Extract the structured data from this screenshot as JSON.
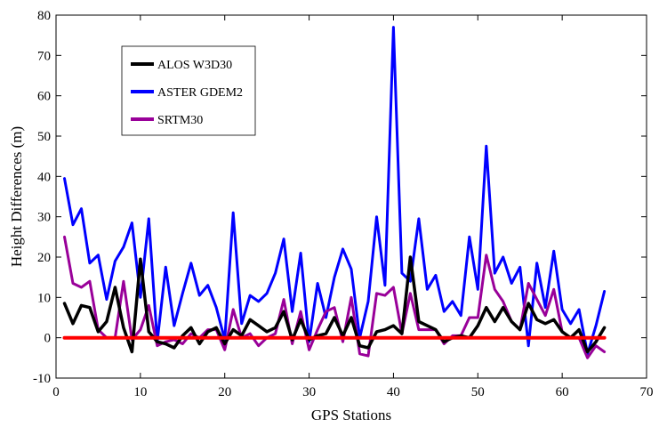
{
  "chart_data": {
    "type": "line",
    "title": "",
    "xlabel": "GPS Stations",
    "ylabel": "Height Differences (m)",
    "xlim": [
      0,
      70
    ],
    "ylim": [
      -10,
      80
    ],
    "xticks": [
      0,
      10,
      20,
      30,
      40,
      50,
      60,
      70
    ],
    "yticks": [
      -10,
      0,
      10,
      20,
      30,
      40,
      50,
      60,
      70,
      80
    ],
    "grid": false,
    "legend_position": "top-left",
    "x": [
      1,
      2,
      3,
      4,
      5,
      6,
      7,
      8,
      9,
      10,
      11,
      12,
      13,
      14,
      15,
      16,
      17,
      18,
      19,
      20,
      21,
      22,
      23,
      24,
      25,
      26,
      27,
      28,
      29,
      30,
      31,
      32,
      33,
      34,
      35,
      36,
      37,
      38,
      39,
      40,
      41,
      42,
      43,
      44,
      45,
      46,
      47,
      48,
      49,
      50,
      51,
      52,
      53,
      54,
      55,
      56,
      57,
      58,
      59,
      60,
      61,
      62,
      63,
      64,
      65
    ],
    "series": [
      {
        "name": "ALOS W3D30",
        "color": "#000000",
        "values": [
          8.5,
          3.5,
          8,
          7.5,
          1.5,
          4,
          12.5,
          2.5,
          -3.5,
          19.5,
          1.5,
          -1,
          -1.5,
          -2.5,
          0.5,
          2.5,
          -1.5,
          1.5,
          2.5,
          -1.5,
          2,
          0.5,
          4.5,
          3,
          1.5,
          2.5,
          6.5,
          -0.5,
          4.5,
          -0.5,
          0.5,
          1,
          5,
          0.5,
          5,
          -2,
          -2.5,
          1.5,
          2,
          3,
          1,
          20,
          4,
          3,
          2,
          -1,
          0,
          0.5,
          0,
          3,
          7.5,
          4,
          7.5,
          4,
          2,
          8.5,
          4.5,
          3.5,
          4.5,
          1.5,
          0,
          2,
          -3.5,
          -1,
          2.5
        ]
      },
      {
        "name": "ASTER GDEM2",
        "color": "#0000FF",
        "values": [
          39.5,
          28,
          32,
          18.5,
          20.5,
          9.5,
          19,
          22.5,
          28.5,
          10,
          29.5,
          -1,
          17.5,
          3,
          11,
          18.5,
          10.5,
          13,
          7.5,
          -0.5,
          31,
          3.5,
          10.5,
          9,
          11,
          16,
          24.5,
          6.5,
          21,
          -1,
          13.5,
          5,
          15,
          22,
          17,
          0,
          9,
          30,
          13,
          77,
          16,
          14,
          29.5,
          12,
          15.5,
          6.5,
          9,
          5.5,
          25,
          12,
          47.5,
          16,
          20,
          13.5,
          17.5,
          -2,
          18.5,
          7.5,
          21.5,
          7,
          3.5,
          7,
          -4,
          3,
          11.5
        ]
      },
      {
        "name": "SRTM30",
        "color": "#990099",
        "values": [
          25,
          13.5,
          12.5,
          14,
          2,
          0,
          0,
          14,
          -0.5,
          2,
          8,
          -2,
          -1,
          -0.5,
          -1.5,
          1,
          0,
          2,
          2,
          -3,
          7,
          0,
          1,
          -2,
          0,
          1,
          9.5,
          -1.5,
          6.5,
          -3,
          2,
          6.5,
          7.5,
          -1,
          10,
          -4,
          -4.5,
          11,
          10.5,
          12.5,
          1,
          11,
          2,
          2,
          2,
          -1.5,
          0.5,
          0.5,
          5,
          5,
          20.5,
          12,
          9,
          4,
          2,
          13.5,
          9.5,
          5.5,
          12,
          1.5,
          0,
          0,
          -5,
          -2,
          -3.5
        ]
      },
      {
        "name": "",
        "color": "#FF0000",
        "values": [
          0,
          0,
          0,
          0,
          0,
          0,
          0,
          0,
          0,
          0,
          0,
          0,
          0,
          0,
          0,
          0,
          0,
          0,
          0,
          0,
          0,
          0,
          0,
          0,
          0,
          0,
          0,
          0,
          0,
          0,
          0,
          0,
          0,
          0,
          0,
          0,
          0,
          0,
          0,
          0,
          0,
          0,
          0,
          0,
          0,
          0,
          0,
          0,
          0,
          0,
          0,
          0,
          0,
          0,
          0,
          0,
          0,
          0,
          0,
          0,
          0,
          0,
          0,
          0,
          0
        ]
      }
    ]
  }
}
